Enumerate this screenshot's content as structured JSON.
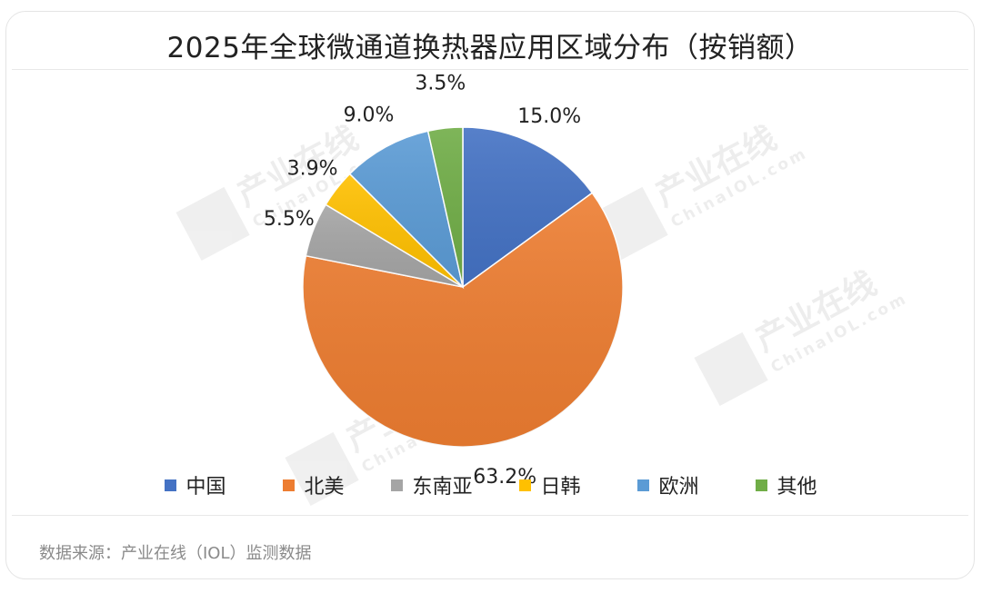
{
  "title": "2025年全球微通道换热器应用区域分布（按销额）",
  "source": "数据来源：产业在线（IOL）监测数据",
  "watermark": {
    "brand": "产业在线",
    "site": "ChinaIOL.com"
  },
  "chart_data": {
    "type": "pie",
    "categories": [
      "中国",
      "北美",
      "东南亚",
      "日韩",
      "欧洲",
      "其他"
    ],
    "values": [
      15.0,
      63.2,
      5.5,
      3.9,
      9.0,
      3.5
    ],
    "labels": [
      "15.0%",
      "63.2%",
      "5.5%",
      "3.9%",
      "9.0%",
      "3.5%"
    ],
    "colors": [
      "#4472C4",
      "#ED7D31",
      "#A5A5A5",
      "#FFC000",
      "#5B9BD5",
      "#70AD47"
    ],
    "start_angle": "12 o'clock, clockwise",
    "legend_position": "bottom"
  }
}
